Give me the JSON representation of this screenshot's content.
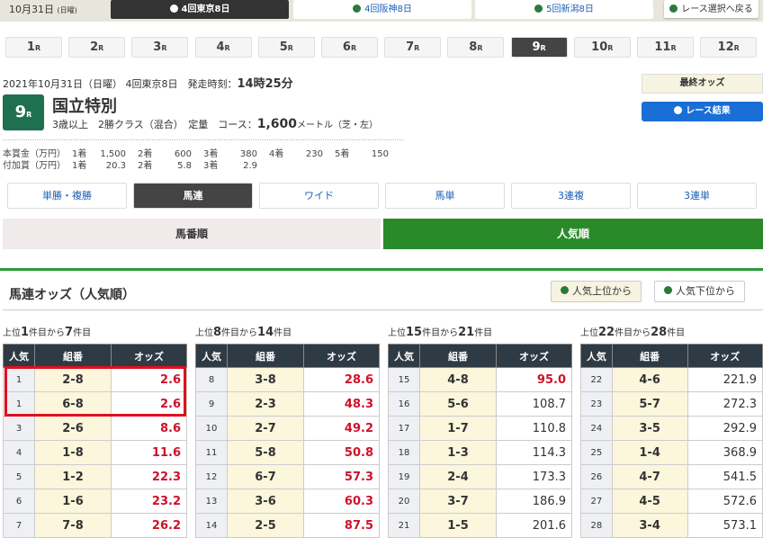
{
  "topbar": {
    "date": "10月31日",
    "weekday": "(日曜)",
    "venues": [
      {
        "label": "4回東京8日",
        "active": true
      },
      {
        "label": "4回阪神8日",
        "active": false
      },
      {
        "label": "5回新潟8日",
        "active": false
      }
    ],
    "back": "レース選択へ戻る"
  },
  "races": [
    {
      "n": "1",
      "active": false
    },
    {
      "n": "2",
      "active": false
    },
    {
      "n": "3",
      "active": false
    },
    {
      "n": "4",
      "active": false
    },
    {
      "n": "5",
      "active": false
    },
    {
      "n": "6",
      "active": false
    },
    {
      "n": "7",
      "active": false
    },
    {
      "n": "8",
      "active": false
    },
    {
      "n": "9",
      "active": true
    },
    {
      "n": "10",
      "active": false
    },
    {
      "n": "11",
      "active": false
    },
    {
      "n": "12",
      "active": false
    }
  ],
  "race_suffix": "R",
  "race": {
    "info": "2021年10月31日（日曜） 4回東京8日　発走時刻：",
    "time": "14時25分",
    "number": "9",
    "name": "国立特別",
    "cond": "3歳以上　2勝クラス（混合）　定量　コース：",
    "distance": "1,600",
    "unit": "メートル（芝・左）"
  },
  "prize": {
    "label": "本賞金（万円）",
    "items": [
      [
        "1着",
        "1,500"
      ],
      [
        "2着",
        "600"
      ],
      [
        "3着",
        "380"
      ],
      [
        "4着",
        "230"
      ],
      [
        "5着",
        "150"
      ]
    ]
  },
  "addprize": {
    "label": "付加賞（万円）",
    "items": [
      [
        "1着",
        "20.3"
      ],
      [
        "2着",
        "5.8"
      ],
      [
        "3着",
        "2.9"
      ]
    ]
  },
  "buttons": {
    "final_odds": "最終オッズ",
    "result": "レース結果"
  },
  "bet_types": [
    {
      "label": "単勝・複勝",
      "active": false
    },
    {
      "label": "馬連",
      "active": true
    },
    {
      "label": "ワイド",
      "active": false
    },
    {
      "label": "馬単",
      "active": false
    },
    {
      "label": "3連複",
      "active": false
    },
    {
      "label": "3連単",
      "active": false
    }
  ],
  "sort_tabs": [
    {
      "label": "馬番順",
      "active": false
    },
    {
      "label": "人気順",
      "active": true
    }
  ],
  "heading": "馬連オッズ（人気順）",
  "sort_buttons": [
    "人気上位から",
    "人気下位から"
  ],
  "colors": {
    "accent_green": "#2a9a3a",
    "odds_red": "#d0102a",
    "highlight": "#e01020"
  },
  "headers": [
    "人気",
    "組番",
    "オッズ"
  ],
  "groups": [
    {
      "caption": [
        "上位",
        "1",
        "件目から",
        "7",
        "件目"
      ],
      "rows": [
        [
          "1",
          "2-8",
          "2.6"
        ],
        [
          "1",
          "6-8",
          "2.6"
        ],
        [
          "3",
          "2-6",
          "8.6"
        ],
        [
          "4",
          "1-8",
          "11.6"
        ],
        [
          "5",
          "1-2",
          "22.3"
        ],
        [
          "6",
          "1-6",
          "23.2"
        ],
        [
          "7",
          "7-8",
          "26.2"
        ]
      ]
    },
    {
      "caption": [
        "上位",
        "8",
        "件目から",
        "14",
        "件目"
      ],
      "rows": [
        [
          "8",
          "3-8",
          "28.6"
        ],
        [
          "9",
          "2-3",
          "48.3"
        ],
        [
          "10",
          "2-7",
          "49.2"
        ],
        [
          "11",
          "5-8",
          "50.8"
        ],
        [
          "12",
          "6-7",
          "57.3"
        ],
        [
          "13",
          "3-6",
          "60.3"
        ],
        [
          "14",
          "2-5",
          "87.5"
        ]
      ]
    },
    {
      "caption": [
        "上位",
        "15",
        "件目から",
        "21",
        "件目"
      ],
      "rows": [
        [
          "15",
          "4-8",
          "95.0"
        ],
        [
          "16",
          "5-6",
          "108.7"
        ],
        [
          "17",
          "1-7",
          "110.8"
        ],
        [
          "18",
          "1-3",
          "114.3"
        ],
        [
          "19",
          "2-4",
          "173.3"
        ],
        [
          "20",
          "3-7",
          "186.9"
        ],
        [
          "21",
          "1-5",
          "201.6"
        ]
      ]
    },
    {
      "caption": [
        "上位",
        "22",
        "件目から",
        "28",
        "件目"
      ],
      "rows": [
        [
          "22",
          "4-6",
          "221.9"
        ],
        [
          "23",
          "5-7",
          "272.3"
        ],
        [
          "24",
          "3-5",
          "292.9"
        ],
        [
          "25",
          "1-4",
          "368.9"
        ],
        [
          "26",
          "4-7",
          "541.5"
        ],
        [
          "27",
          "4-5",
          "572.6"
        ],
        [
          "28",
          "3-4",
          "573.1"
        ]
      ]
    }
  ]
}
